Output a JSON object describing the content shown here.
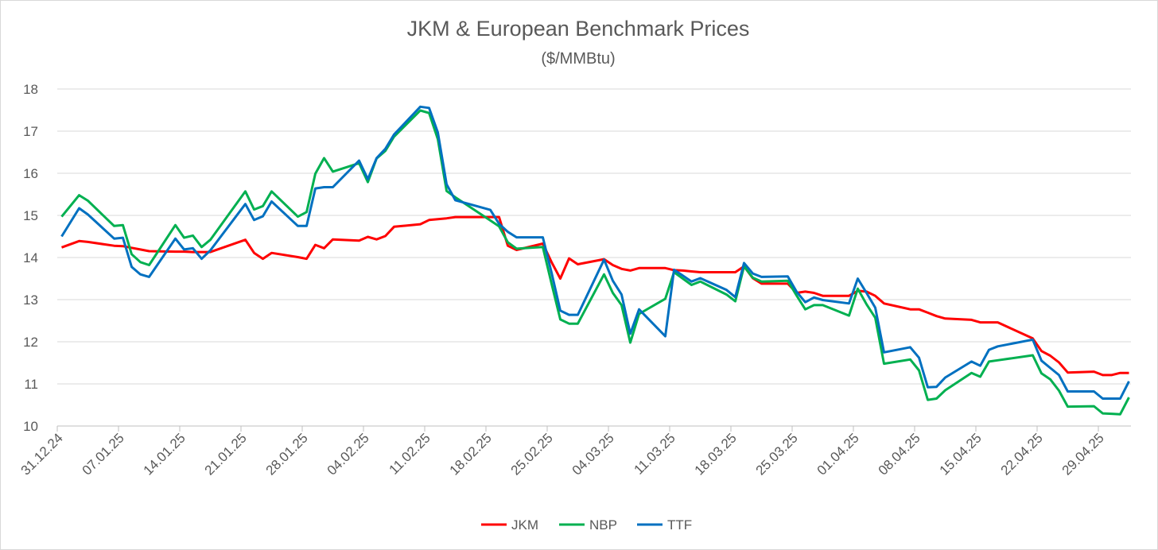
{
  "chart_data": {
    "type": "line",
    "title": "JKM & European Benchmark Prices",
    "subtitle": "($/MMBtu)",
    "xlabel": "",
    "ylabel": "",
    "ylim": [
      10,
      18
    ],
    "yticks": [
      "10",
      "11",
      "12",
      "13",
      "14",
      "15",
      "16",
      "17",
      "18"
    ],
    "xticks": [
      "31.12.24",
      "07.01.25",
      "14.01.25",
      "21.01.25",
      "28.01.25",
      "04.02.25",
      "11.02.25",
      "18.02.25",
      "25.02.25",
      "04.03.25",
      "11.03.25",
      "18.03.25",
      "25.03.25",
      "01.04.25",
      "08.04.25",
      "15.04.25",
      "22.04.25",
      "29.04.25"
    ],
    "grid": true,
    "legend_position": "bottom",
    "x": [
      "31.12.24",
      "02.01.25",
      "03.01.25",
      "06.01.25",
      "07.01.25",
      "08.01.25",
      "09.01.25",
      "10.01.25",
      "13.01.25",
      "14.01.25",
      "15.01.25",
      "16.01.25",
      "17.01.25",
      "21.01.25",
      "22.01.25",
      "23.01.25",
      "24.01.25",
      "27.01.25",
      "28.01.25",
      "29.01.25",
      "30.01.25",
      "31.01.25",
      "03.02.25",
      "04.02.25",
      "05.02.25",
      "06.02.25",
      "07.02.25",
      "10.02.25",
      "11.02.25",
      "12.02.25",
      "13.02.25",
      "14.02.25",
      "18.02.25",
      "19.02.25",
      "20.02.25",
      "21.02.25",
      "24.02.25",
      "25.02.25",
      "26.02.25",
      "27.02.25",
      "28.02.25",
      "03.03.25",
      "04.03.25",
      "05.03.25",
      "06.03.25",
      "07.03.25",
      "10.03.25",
      "11.03.25",
      "12.03.25",
      "13.03.25",
      "14.03.25",
      "17.03.25",
      "18.03.25",
      "19.03.25",
      "20.03.25",
      "21.03.25",
      "24.03.25",
      "25.03.25",
      "26.03.25",
      "27.03.25",
      "28.03.25",
      "31.03.25",
      "01.04.25",
      "02.04.25",
      "03.04.25",
      "04.04.25",
      "07.04.25",
      "08.04.25",
      "09.04.25",
      "10.04.25",
      "11.04.25",
      "14.04.25",
      "15.04.25",
      "16.04.25",
      "17.04.25",
      "21.04.25",
      "22.04.25",
      "23.04.25",
      "24.04.25",
      "25.04.25",
      "28.04.25",
      "29.04.25",
      "30.04.25",
      "01.05.25",
      "02.05.25"
    ],
    "series": [
      {
        "name": "JKM",
        "color": "#ff0000",
        "values": [
          14.24,
          14.39,
          14.37,
          14.28,
          14.27,
          14.23,
          14.19,
          14.15,
          14.14,
          14.14,
          14.13,
          14.13,
          14.13,
          14.42,
          14.11,
          13.97,
          14.11,
          14.01,
          13.97,
          14.3,
          14.22,
          14.43,
          14.4,
          14.49,
          14.43,
          14.51,
          14.73,
          14.79,
          14.89,
          14.91,
          14.93,
          14.96,
          14.96,
          14.96,
          14.28,
          14.18,
          14.33,
          13.89,
          13.5,
          13.98,
          13.84,
          13.96,
          13.82,
          13.73,
          13.69,
          13.75,
          13.75,
          13.7,
          13.69,
          13.67,
          13.65,
          13.65,
          13.65,
          13.79,
          13.51,
          13.38,
          13.38,
          13.16,
          13.19,
          13.16,
          13.09,
          13.09,
          13.21,
          13.19,
          13.09,
          12.91,
          12.77,
          12.77,
          12.69,
          12.61,
          12.55,
          12.52,
          12.46,
          12.46,
          12.46,
          12.08,
          11.78,
          11.67,
          11.51,
          11.27,
          11.29,
          11.21,
          11.21,
          11.26,
          11.26
        ]
      },
      {
        "name": "NBP",
        "color": "#00b050",
        "values": [
          14.97,
          15.48,
          15.35,
          14.75,
          14.77,
          14.08,
          13.89,
          13.82,
          14.77,
          14.47,
          14.52,
          14.25,
          14.42,
          15.57,
          15.14,
          15.22,
          15.57,
          14.97,
          15.08,
          15.99,
          16.36,
          16.04,
          16.24,
          15.79,
          16.35,
          16.53,
          16.87,
          17.49,
          17.43,
          16.81,
          15.58,
          15.43,
          14.88,
          14.74,
          14.36,
          14.21,
          14.25,
          13.38,
          12.53,
          12.43,
          12.43,
          13.6,
          13.16,
          12.87,
          11.98,
          12.66,
          13.02,
          13.65,
          13.5,
          13.35,
          13.43,
          13.12,
          12.96,
          13.79,
          13.52,
          13.43,
          13.45,
          13.1,
          12.77,
          12.87,
          12.87,
          12.62,
          13.26,
          12.89,
          12.57,
          11.48,
          11.58,
          11.32,
          10.62,
          10.65,
          10.85,
          11.26,
          11.17,
          11.53,
          11.56,
          11.68,
          11.25,
          11.11,
          10.84,
          10.46,
          10.47,
          10.3,
          10.29,
          10.28,
          10.68
        ]
      },
      {
        "name": "TTF",
        "color": "#0070c0",
        "values": [
          14.5,
          15.17,
          15.02,
          14.45,
          14.47,
          13.78,
          13.6,
          13.54,
          14.45,
          14.19,
          14.22,
          13.97,
          14.17,
          15.27,
          14.89,
          14.98,
          15.33,
          14.75,
          14.75,
          15.64,
          15.67,
          15.67,
          16.3,
          15.86,
          16.36,
          16.58,
          16.92,
          17.58,
          17.55,
          16.97,
          15.74,
          15.36,
          15.13,
          14.8,
          14.61,
          14.48,
          14.48,
          13.64,
          12.74,
          12.64,
          12.64,
          13.95,
          13.45,
          13.12,
          12.19,
          12.77,
          12.13,
          13.71,
          13.57,
          13.43,
          13.51,
          13.23,
          13.06,
          13.87,
          13.62,
          13.54,
          13.55,
          13.19,
          12.94,
          13.05,
          12.99,
          12.91,
          13.5,
          13.16,
          12.81,
          11.75,
          11.87,
          11.62,
          10.92,
          10.93,
          11.15,
          11.53,
          11.43,
          11.81,
          11.89,
          12.05,
          11.55,
          11.38,
          11.21,
          10.82,
          10.82,
          10.65,
          10.65,
          10.65,
          11.06
        ]
      }
    ]
  }
}
